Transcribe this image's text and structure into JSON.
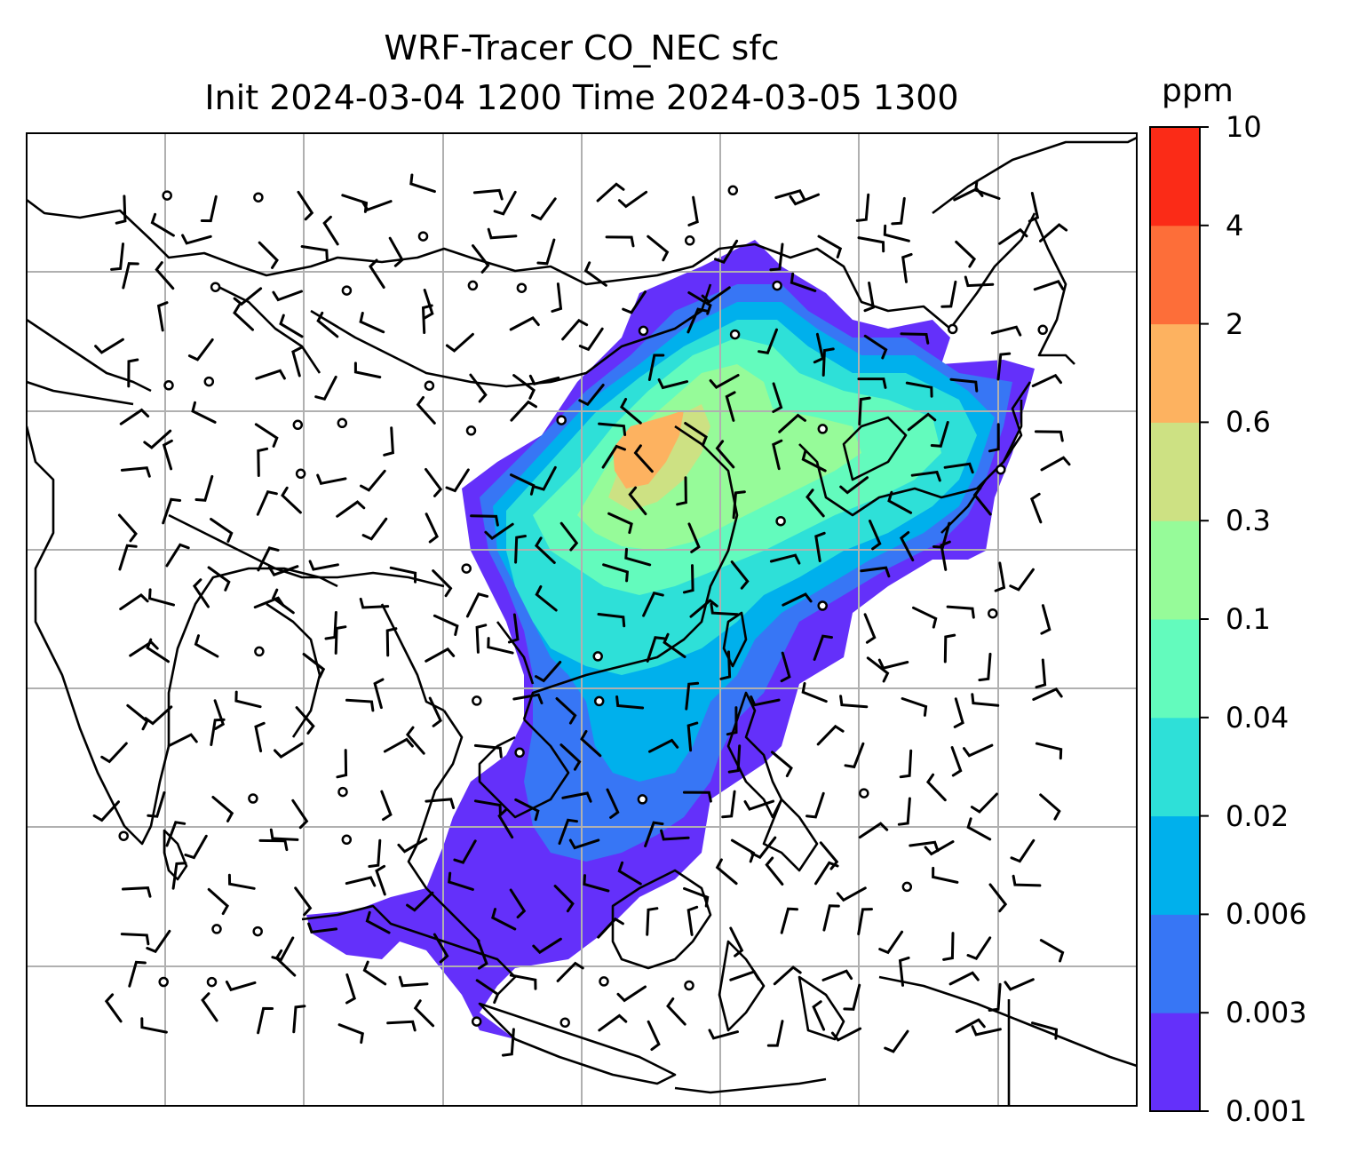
{
  "title": {
    "line1": "WRF-Tracer CO_NEC sfc",
    "line2": "Init 2024-03-04 1200 Time 2024-03-05 1300"
  },
  "colorbar": {
    "unit": "ppm",
    "levels": [
      "0.001",
      "0.003",
      "0.006",
      "0.02",
      "0.04",
      "0.1",
      "0.3",
      "0.6",
      "2",
      "4",
      "10"
    ],
    "colors": [
      "#6430fa",
      "#3776f5",
      "#00b0ec",
      "#2ee0d8",
      "#63fbbd",
      "#96fb99",
      "#cde183",
      "#fdb260",
      "#fd6e39",
      "#fb2b17"
    ]
  },
  "map": {
    "variable": "CO_NEC",
    "level": "sfc",
    "features": [
      "coastlines",
      "country-borders",
      "gridlines",
      "wind-barbs",
      "calm-circles",
      "filled-contours"
    ]
  }
}
